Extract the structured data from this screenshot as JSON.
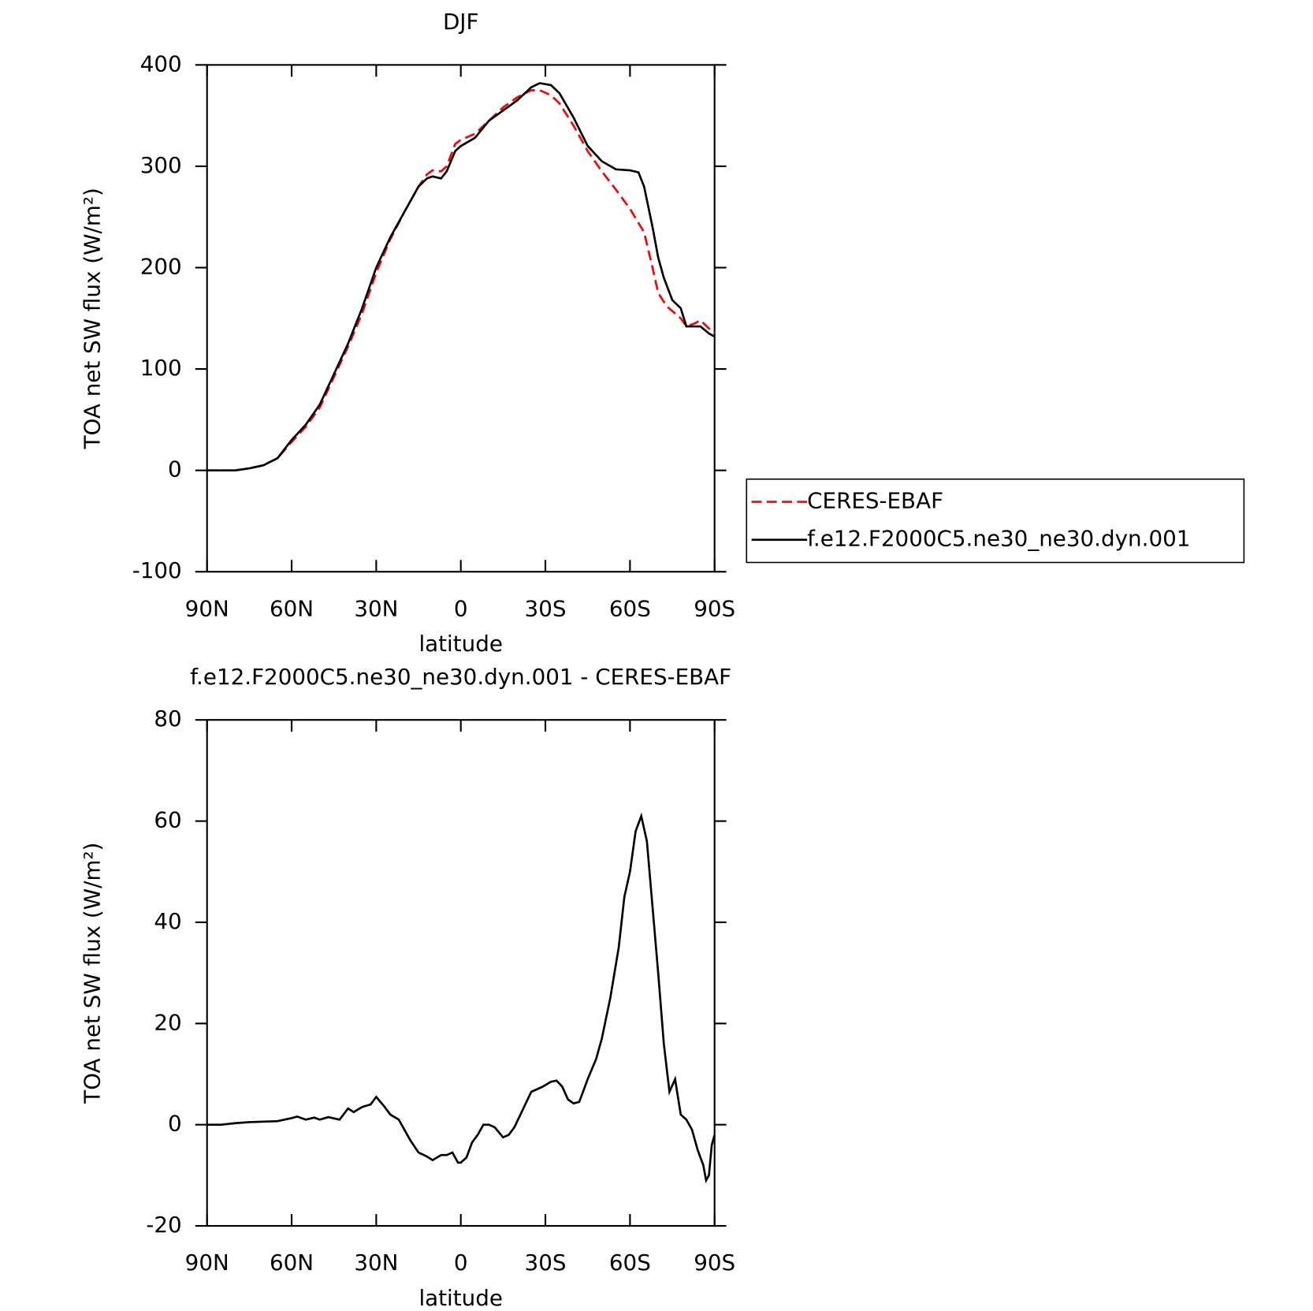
{
  "chart_data": [
    {
      "type": "line",
      "title": "DJF",
      "xlabel": "latitude",
      "ylabel": "TOA net SW flux (W/m²)",
      "xlim": [
        90,
        -90
      ],
      "xticks": [
        {
          "value": 90,
          "label": "90N"
        },
        {
          "value": 60,
          "label": "60N"
        },
        {
          "value": 30,
          "label": "30N"
        },
        0,
        {
          "value": -30,
          "label": "30S"
        },
        {
          "value": -60,
          "label": "60S"
        },
        {
          "value": -90,
          "label": "90S"
        }
      ],
      "ylim": [
        -100,
        400
      ],
      "yticks": [
        -100,
        0,
        100,
        200,
        300,
        400
      ],
      "legend": "right",
      "series": [
        {
          "name": "CERES-EBAF",
          "color": "#ff0000",
          "dash": true,
          "x": [
            90,
            85,
            80,
            75,
            70,
            65,
            60,
            55,
            50,
            45,
            40,
            35,
            30,
            25,
            20,
            15,
            12,
            10,
            7,
            5,
            2,
            0,
            -5,
            -10,
            -15,
            -20,
            -25,
            -28,
            -32,
            -35,
            -40,
            -45,
            -50,
            -55,
            -60,
            -65,
            -68,
            -70,
            -73,
            -78,
            -80,
            -83,
            -85,
            -88,
            -90
          ],
          "values": [
            0,
            0,
            0,
            2,
            5,
            12,
            28,
            43,
            62,
            92,
            122,
            155,
            195,
            228,
            255,
            280,
            292,
            296,
            295,
            300,
            322,
            326,
            332,
            345,
            358,
            368,
            375,
            375,
            370,
            362,
            340,
            315,
            295,
            277,
            258,
            235,
            200,
            175,
            162,
            150,
            142,
            145,
            148,
            140,
            135
          ]
        },
        {
          "name": "f.e12.F2000C5.ne30_ne30.dyn.001",
          "color": "#000000",
          "dash": false,
          "x": [
            90,
            85,
            80,
            75,
            70,
            65,
            60,
            55,
            50,
            45,
            40,
            35,
            30,
            25,
            20,
            15,
            12,
            10,
            7,
            5,
            2,
            0,
            -5,
            -10,
            -15,
            -20,
            -25,
            -28,
            -32,
            -35,
            -40,
            -45,
            -50,
            -55,
            -60,
            -63,
            -65,
            -68,
            -70,
            -72,
            -75,
            -78,
            -80,
            -85,
            -88,
            -90
          ],
          "values": [
            0,
            0,
            0,
            2,
            5,
            12,
            30,
            45,
            65,
            95,
            125,
            160,
            200,
            230,
            255,
            280,
            288,
            290,
            288,
            295,
            315,
            320,
            328,
            345,
            355,
            365,
            378,
            382,
            380,
            372,
            348,
            320,
            305,
            297,
            296,
            294,
            280,
            240,
            210,
            190,
            168,
            160,
            142,
            142,
            135,
            132
          ]
        }
      ]
    },
    {
      "type": "line",
      "title": "f.e12.F2000C5.ne30_ne30.dyn.001 - CERES-EBAF",
      "xlabel": "latitude",
      "ylabel": "TOA net SW flux (W/m²)",
      "xlim": [
        90,
        -90
      ],
      "xticks": [
        {
          "value": 90,
          "label": "90N"
        },
        {
          "value": 60,
          "label": "60N"
        },
        {
          "value": 30,
          "label": "30N"
        },
        0,
        {
          "value": -30,
          "label": "30S"
        },
        {
          "value": -60,
          "label": "60S"
        },
        {
          "value": -90,
          "label": "90S"
        }
      ],
      "ylim": [
        -20,
        80
      ],
      "yticks": [
        -20,
        0,
        20,
        40,
        60,
        80
      ],
      "series": [
        {
          "color": "#000000",
          "dash": false,
          "x": [
            90,
            85,
            80,
            75,
            70,
            65,
            60,
            58,
            55,
            52,
            50,
            47,
            43,
            40,
            38,
            35,
            32,
            30,
            27,
            25,
            22,
            20,
            18,
            15,
            12,
            10,
            7,
            5,
            3,
            1,
            0,
            -2,
            -4,
            -6,
            -8,
            -10,
            -12,
            -15,
            -17,
            -19,
            -22,
            -25,
            -27,
            -29,
            -32,
            -34,
            -36,
            -38,
            -40,
            -42,
            -45,
            -48,
            -50,
            -53,
            -56,
            -58,
            -60,
            -62,
            -64,
            -66,
            -68,
            -70,
            -72,
            -74,
            -76,
            -78,
            -80,
            -82,
            -84,
            -86,
            -87,
            -88,
            -89,
            -90
          ],
          "values": [
            0,
            0,
            0.3,
            0.5,
            0.6,
            0.7,
            1.3,
            1.6,
            1.0,
            1.4,
            1.0,
            1.5,
            1.0,
            3.2,
            2.5,
            3.5,
            4,
            5.5,
            3.5,
            2,
            1,
            -1,
            -3,
            -5.5,
            -6.3,
            -7,
            -6,
            -6,
            -5.5,
            -7.5,
            -7.5,
            -6.5,
            -3.5,
            -2,
            0,
            0,
            -0.5,
            -2.5,
            -2,
            -0.5,
            3,
            6.5,
            7,
            7.5,
            8.5,
            8.7,
            7.5,
            5,
            4.2,
            4.5,
            9,
            13,
            17,
            25,
            35,
            45,
            50,
            58,
            61,
            56,
            43,
            30,
            16,
            6.5,
            9,
            2,
            1,
            -1,
            -5,
            -8,
            -11,
            -10,
            -4,
            -2
          ]
        }
      ]
    }
  ]
}
